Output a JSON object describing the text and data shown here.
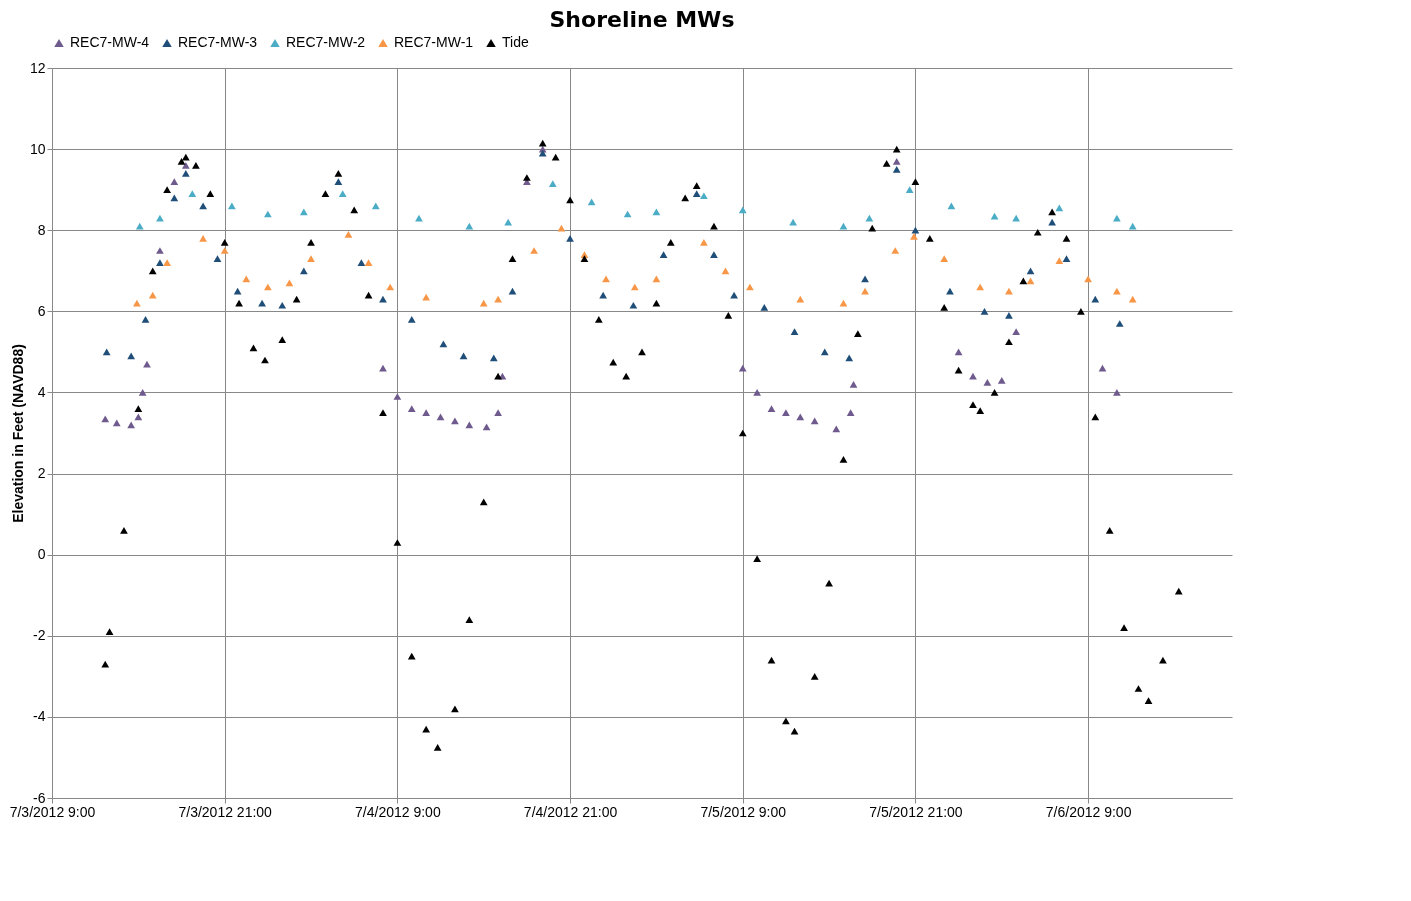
{
  "chart_data": {
    "type": "scatter",
    "title": "Shoreline MWs",
    "ylabel": "Elevation in Feet (NAVD88)",
    "xlim": [
      "2012-07-03T09:00",
      "2012-07-06T19:00"
    ],
    "xticks": [
      {
        "value": "2012-07-03T09:00",
        "label": "7/3/2012 9:00"
      },
      {
        "value": "2012-07-03T21:00",
        "label": "7/3/2012 21:00"
      },
      {
        "value": "2012-07-04T09:00",
        "label": "7/4/2012 9:00"
      },
      {
        "value": "2012-07-04T21:00",
        "label": "7/4/2012 21:00"
      },
      {
        "value": "2012-07-05T09:00",
        "label": "7/5/2012 9:00"
      },
      {
        "value": "2012-07-05T21:00",
        "label": "7/5/2012 21:00"
      },
      {
        "value": "2012-07-06T09:00",
        "label": "7/6/2012 9:00"
      }
    ],
    "ylim": [
      -6,
      12
    ],
    "yticks": [
      -6,
      -4,
      -2,
      0,
      2,
      4,
      6,
      8,
      10,
      12
    ],
    "grid": true,
    "legend": "top",
    "marker": "triangle",
    "series": [
      {
        "name": "REC7-MW-4",
        "color": "#6f5a8e",
        "x": [
          "2012-07-03T12:42",
          "2012-07-03T13:30",
          "2012-07-03T14:30",
          "2012-07-03T15:00",
          "2012-07-03T15:18",
          "2012-07-03T15:36",
          "2012-07-03T16:30",
          "2012-07-03T17:30",
          "2012-07-03T18:18",
          "2012-07-04T08:00",
          "2012-07-04T09:00",
          "2012-07-04T10:00",
          "2012-07-04T11:00",
          "2012-07-04T12:00",
          "2012-07-04T13:00",
          "2012-07-04T14:00",
          "2012-07-04T15:12",
          "2012-07-04T16:00",
          "2012-07-04T16:18",
          "2012-07-04T18:00",
          "2012-07-04T19:06",
          "2012-07-05T09:00",
          "2012-07-05T10:00",
          "2012-07-05T11:00",
          "2012-07-05T12:00",
          "2012-07-05T13:00",
          "2012-07-05T14:00",
          "2012-07-05T15:30",
          "2012-07-05T16:30",
          "2012-07-05T16:42",
          "2012-07-05T19:42",
          "2012-07-06T00:00",
          "2012-07-06T01:00",
          "2012-07-06T02:00",
          "2012-07-06T03:00",
          "2012-07-06T04:00",
          "2012-07-06T10:00",
          "2012-07-06T11:00"
        ],
        "values": [
          3.35,
          3.25,
          3.2,
          3.4,
          4.0,
          4.7,
          7.5,
          9.2,
          9.6,
          4.6,
          3.9,
          3.6,
          3.5,
          3.4,
          3.3,
          3.2,
          3.15,
          3.5,
          4.4,
          9.2,
          10.0,
          4.6,
          4.0,
          3.6,
          3.5,
          3.4,
          3.3,
          3.1,
          3.5,
          4.2,
          9.7,
          5.0,
          4.4,
          4.25,
          4.3,
          5.5,
          4.6,
          4.0
        ]
      },
      {
        "name": "REC7-MW-3",
        "color": "#1f4e79",
        "x": [
          "2012-07-03T12:48",
          "2012-07-03T14:30",
          "2012-07-03T15:30",
          "2012-07-03T16:30",
          "2012-07-03T17:30",
          "2012-07-03T18:18",
          "2012-07-03T19:30",
          "2012-07-03T20:30",
          "2012-07-03T21:54",
          "2012-07-03T23:36",
          "2012-07-04T01:00",
          "2012-07-04T02:30",
          "2012-07-04T04:54",
          "2012-07-04T06:30",
          "2012-07-04T08:00",
          "2012-07-04T10:00",
          "2012-07-04T12:12",
          "2012-07-04T13:36",
          "2012-07-04T15:42",
          "2012-07-04T17:00",
          "2012-07-04T19:06",
          "2012-07-04T21:00",
          "2012-07-04T23:18",
          "2012-07-05T01:24",
          "2012-07-05T03:30",
          "2012-07-05T05:48",
          "2012-07-05T07:00",
          "2012-07-05T08:24",
          "2012-07-05T10:30",
          "2012-07-05T12:36",
          "2012-07-05T14:42",
          "2012-07-05T16:24",
          "2012-07-05T17:30",
          "2012-07-05T19:42",
          "2012-07-05T21:00",
          "2012-07-05T23:24",
          "2012-07-06T01:48",
          "2012-07-06T03:30",
          "2012-07-06T05:00",
          "2012-07-06T06:30",
          "2012-07-06T07:30",
          "2012-07-06T09:30",
          "2012-07-06T11:12"
        ],
        "values": [
          5.0,
          4.9,
          5.8,
          7.2,
          8.8,
          9.4,
          8.6,
          7.3,
          6.5,
          6.2,
          6.15,
          7.0,
          9.2,
          7.2,
          6.3,
          5.8,
          5.2,
          4.9,
          4.85,
          6.5,
          9.9,
          7.8,
          6.4,
          6.15,
          7.4,
          8.9,
          7.4,
          6.4,
          6.1,
          5.5,
          5.0,
          4.85,
          6.8,
          9.5,
          8.0,
          6.5,
          6.0,
          5.9,
          7.0,
          8.2,
          7.3,
          6.3,
          5.7
        ]
      },
      {
        "name": "REC7-MW-2",
        "color": "#4bacc6",
        "x": [
          "2012-07-03T15:06",
          "2012-07-03T16:30",
          "2012-07-03T18:45",
          "2012-07-03T21:30",
          "2012-07-04T00:00",
          "2012-07-04T02:30",
          "2012-07-04T05:12",
          "2012-07-04T07:30",
          "2012-07-04T10:30",
          "2012-07-04T14:00",
          "2012-07-04T16:42",
          "2012-07-04T19:48",
          "2012-07-04T22:30",
          "2012-07-05T01:00",
          "2012-07-05T03:00",
          "2012-07-05T06:18",
          "2012-07-05T09:00",
          "2012-07-05T12:30",
          "2012-07-05T16:00",
          "2012-07-05T17:48",
          "2012-07-05T20:36",
          "2012-07-05T23:30",
          "2012-07-06T02:30",
          "2012-07-06T04:00",
          "2012-07-06T07:00",
          "2012-07-06T11:00",
          "2012-07-06T12:06"
        ],
        "values": [
          8.1,
          8.3,
          8.9,
          8.6,
          8.4,
          8.45,
          8.9,
          8.6,
          8.3,
          8.1,
          8.2,
          9.15,
          8.7,
          8.4,
          8.45,
          8.85,
          8.5,
          8.2,
          8.1,
          8.3,
          9.0,
          8.6,
          8.35,
          8.3,
          8.55,
          8.3,
          8.1
        ]
      },
      {
        "name": "REC7-MW-1",
        "color": "#f79646",
        "x": [
          "2012-07-03T14:54",
          "2012-07-03T16:00",
          "2012-07-03T17:00",
          "2012-07-03T19:30",
          "2012-07-03T21:00",
          "2012-07-03T22:30",
          "2012-07-04T00:00",
          "2012-07-04T01:30",
          "2012-07-04T03:00",
          "2012-07-04T05:36",
          "2012-07-04T07:00",
          "2012-07-04T08:30",
          "2012-07-04T11:00",
          "2012-07-04T15:00",
          "2012-07-04T16:00",
          "2012-07-04T18:30",
          "2012-07-04T20:24",
          "2012-07-04T22:00",
          "2012-07-04T23:30",
          "2012-07-05T01:30",
          "2012-07-05T03:00",
          "2012-07-05T06:18",
          "2012-07-05T07:48",
          "2012-07-05T09:30",
          "2012-07-05T13:00",
          "2012-07-05T16:00",
          "2012-07-05T17:30",
          "2012-07-05T19:36",
          "2012-07-05T20:54",
          "2012-07-05T23:00",
          "2012-07-06T01:30",
          "2012-07-06T03:30",
          "2012-07-06T05:00",
          "2012-07-06T07:00",
          "2012-07-06T09:00",
          "2012-07-06T11:00",
          "2012-07-06T12:06"
        ],
        "values": [
          6.2,
          6.4,
          7.2,
          7.8,
          7.5,
          6.8,
          6.6,
          6.7,
          7.3,
          7.9,
          7.2,
          6.6,
          6.35,
          6.2,
          6.3,
          7.5,
          8.05,
          7.4,
          6.8,
          6.6,
          6.8,
          7.7,
          7.0,
          6.6,
          6.3,
          6.2,
          6.5,
          7.5,
          7.85,
          7.3,
          6.6,
          6.5,
          6.75,
          7.25,
          6.8,
          6.5,
          6.3
        ]
      },
      {
        "name": "Tide",
        "color": "#000000",
        "x": [
          "2012-07-03T12:42",
          "2012-07-03T13:00",
          "2012-07-03T14:00",
          "2012-07-03T15:00",
          "2012-07-03T16:00",
          "2012-07-03T17:00",
          "2012-07-03T18:00",
          "2012-07-03T18:18",
          "2012-07-03T19:00",
          "2012-07-03T20:00",
          "2012-07-03T21:00",
          "2012-07-03T22:00",
          "2012-07-03T23:00",
          "2012-07-03T23:48",
          "2012-07-04T01:00",
          "2012-07-04T02:00",
          "2012-07-04T03:00",
          "2012-07-04T04:00",
          "2012-07-04T04:54",
          "2012-07-04T06:00",
          "2012-07-04T07:00",
          "2012-07-04T08:00",
          "2012-07-04T09:00",
          "2012-07-04T10:00",
          "2012-07-04T11:00",
          "2012-07-04T11:48",
          "2012-07-04T13:00",
          "2012-07-04T14:00",
          "2012-07-04T15:00",
          "2012-07-04T16:00",
          "2012-07-04T17:00",
          "2012-07-04T18:00",
          "2012-07-04T19:06",
          "2012-07-04T20:00",
          "2012-07-04T21:00",
          "2012-07-04T22:00",
          "2012-07-04T23:00",
          "2012-07-05T00:00",
          "2012-07-05T00:54",
          "2012-07-05T02:00",
          "2012-07-05T03:00",
          "2012-07-05T04:00",
          "2012-07-05T05:00",
          "2012-07-05T05:48",
          "2012-07-05T07:00",
          "2012-07-05T08:00",
          "2012-07-05T09:00",
          "2012-07-05T10:00",
          "2012-07-05T11:00",
          "2012-07-05T12:00",
          "2012-07-05T12:36",
          "2012-07-05T14:00",
          "2012-07-05T15:00",
          "2012-07-05T16:00",
          "2012-07-05T17:00",
          "2012-07-05T18:00",
          "2012-07-05T19:00",
          "2012-07-05T19:42",
          "2012-07-05T21:00",
          "2012-07-05T22:00",
          "2012-07-05T23:00",
          "2012-07-06T00:00",
          "2012-07-06T01:00",
          "2012-07-06T01:30",
          "2012-07-06T02:30",
          "2012-07-06T03:30",
          "2012-07-06T04:30",
          "2012-07-06T05:30",
          "2012-07-06T06:30",
          "2012-07-06T07:30",
          "2012-07-06T08:30",
          "2012-07-06T09:30",
          "2012-07-06T10:30",
          "2012-07-06T11:30",
          "2012-07-06T12:30",
          "2012-07-06T13:12",
          "2012-07-06T14:12",
          "2012-07-06T15:18"
        ],
        "values": [
          -2.7,
          -1.9,
          0.6,
          3.6,
          7.0,
          9.0,
          9.7,
          9.8,
          9.6,
          8.9,
          7.7,
          6.2,
          5.1,
          4.8,
          5.3,
          6.3,
          7.7,
          8.9,
          9.4,
          8.5,
          6.4,
          3.5,
          0.3,
          -2.5,
          -4.3,
          -4.75,
          -3.8,
          -1.6,
          1.3,
          4.4,
          7.3,
          9.3,
          10.15,
          9.8,
          8.75,
          7.3,
          5.8,
          4.75,
          4.4,
          5.0,
          6.2,
          7.7,
          8.8,
          9.1,
          8.1,
          5.9,
          3.0,
          -0.1,
          -2.6,
          -4.1,
          -4.35,
          -3.0,
          -0.7,
          2.35,
          5.45,
          8.05,
          9.65,
          10.0,
          9.2,
          7.8,
          6.1,
          4.55,
          3.7,
          3.55,
          4.0,
          5.25,
          6.75,
          7.95,
          8.45,
          7.8,
          6.0,
          3.4,
          0.6,
          -1.8,
          -3.3,
          -3.6,
          -2.6,
          -0.9
        ]
      }
    ]
  }
}
